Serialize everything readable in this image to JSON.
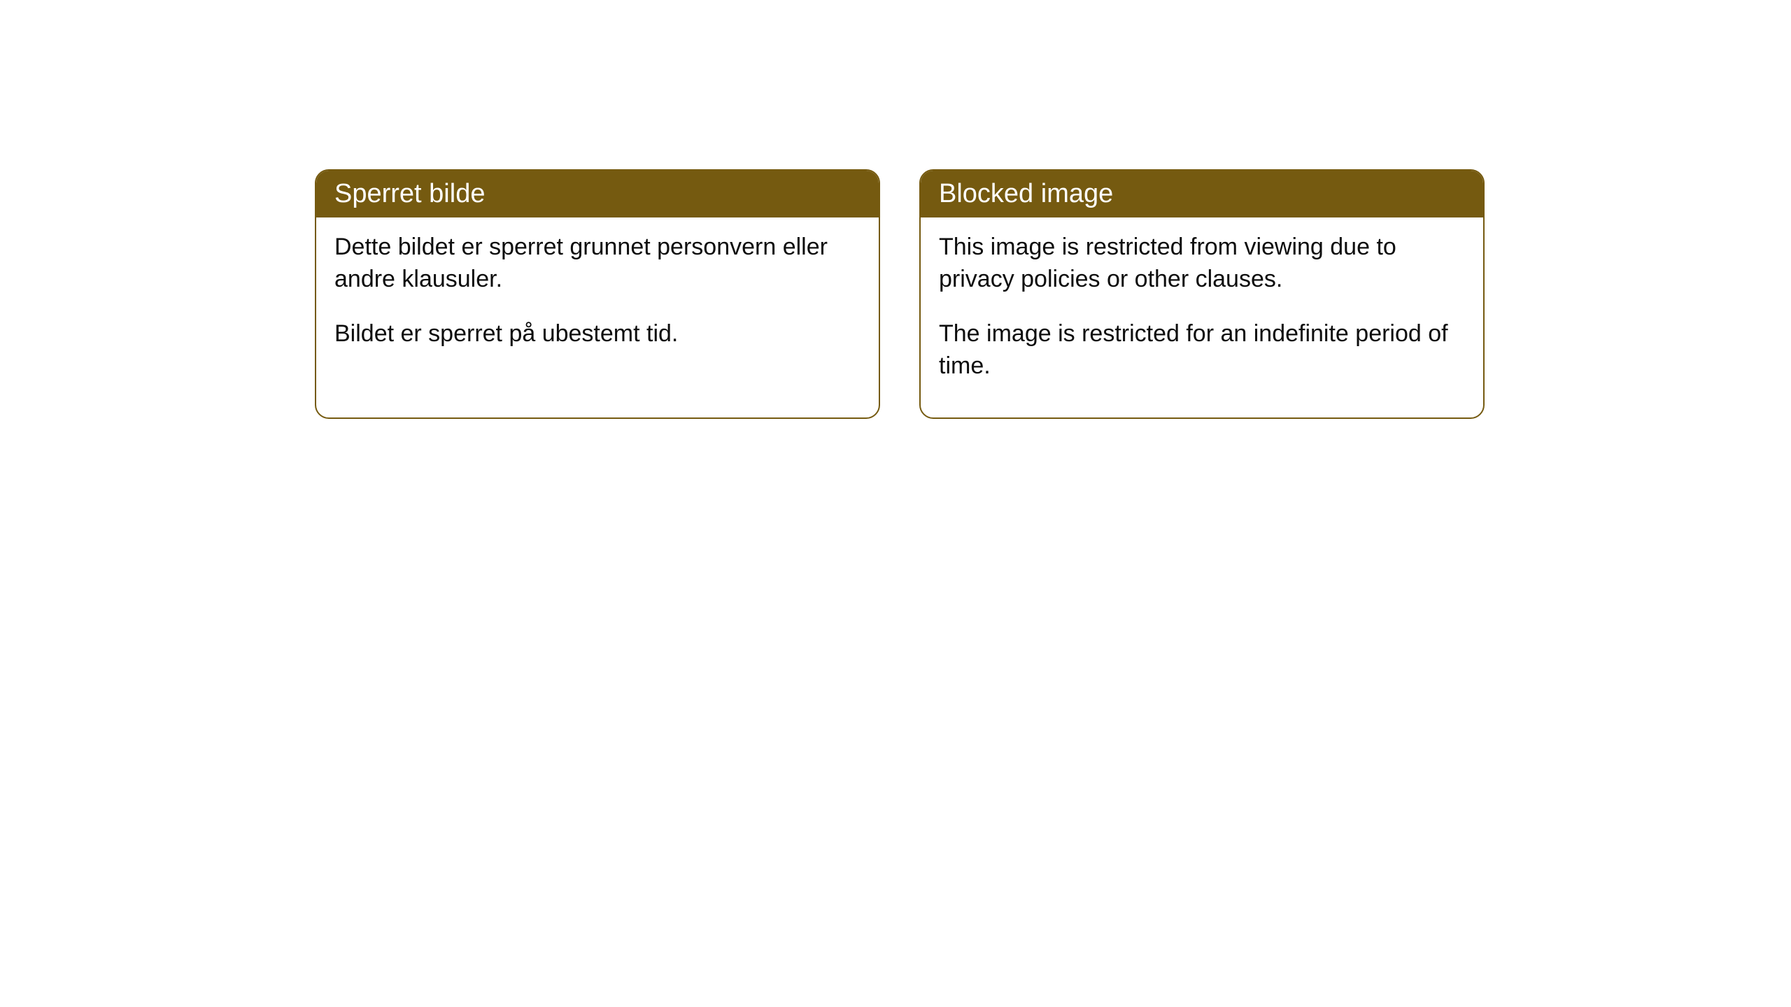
{
  "cards": [
    {
      "title": "Sperret bilde",
      "paragraph1": "Dette bildet er sperret grunnet personvern eller andre klausuler.",
      "paragraph2": "Bildet er sperret på ubestemt tid."
    },
    {
      "title": "Blocked image",
      "paragraph1": "This image is restricted from viewing due to privacy policies or other clauses.",
      "paragraph2": "The image is restricted for an indefinite period of time."
    }
  ],
  "style": {
    "header_bg_color": "#755a10",
    "header_text_color": "#ffffff",
    "border_color": "#755a10",
    "body_text_color": "#0d0d0d",
    "card_bg_color": "#ffffff",
    "page_bg_color": "#ffffff",
    "border_radius": 20,
    "header_fontsize": 38,
    "body_fontsize": 34
  }
}
